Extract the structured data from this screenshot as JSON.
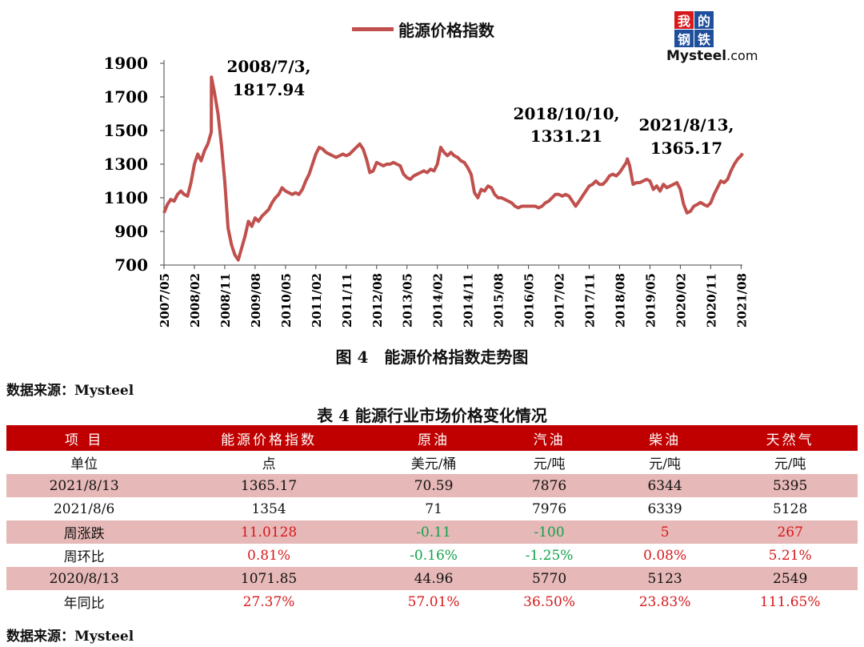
{
  "legend": {
    "label": "能源价格指数",
    "color": "#c0504d"
  },
  "logo": {
    "chars": [
      "我",
      "的",
      "钢",
      "铁"
    ],
    "word_main": "Mysteel",
    "word_suffix": ".com"
  },
  "chart_data": {
    "type": "line",
    "series_name": "能源价格指数",
    "ylim": [
      700,
      1900
    ],
    "yticks": [
      700,
      900,
      1100,
      1300,
      1500,
      1700,
      1900
    ],
    "xtick_labels": [
      "2007/05",
      "2008/02",
      "2008/11",
      "2009/08",
      "2010/05",
      "2011/02",
      "2011/11",
      "2012/08",
      "2013/05",
      "2014/02",
      "2014/11",
      "2015/08",
      "2016/05",
      "2017/02",
      "2017/11",
      "2018/08",
      "2019/05",
      "2020/02",
      "2020/11",
      "2021/08"
    ],
    "points": [
      [
        "2007/05",
        1010
      ],
      [
        "2007/06",
        1060
      ],
      [
        "2007/07",
        1090
      ],
      [
        "2007/08",
        1080
      ],
      [
        "2007/09",
        1120
      ],
      [
        "2007/10",
        1140
      ],
      [
        "2007/11",
        1120
      ],
      [
        "2007/12",
        1110
      ],
      [
        "2008/01",
        1190
      ],
      [
        "2008/02",
        1300
      ],
      [
        "2008/03",
        1360
      ],
      [
        "2008/04",
        1320
      ],
      [
        "2008/05",
        1380
      ],
      [
        "2008/06",
        1420
      ],
      [
        "2008/07",
        1490
      ],
      [
        "2008/07/03",
        1817.94
      ],
      [
        "2008/08",
        1720
      ],
      [
        "2008/09",
        1600
      ],
      [
        "2008/10",
        1420
      ],
      [
        "2008/11",
        1200
      ],
      [
        "2008/12",
        920
      ],
      [
        "2009/01",
        820
      ],
      [
        "2009/02",
        760
      ],
      [
        "2009/03",
        730
      ],
      [
        "2009/04",
        800
      ],
      [
        "2009/05",
        870
      ],
      [
        "2009/06",
        960
      ],
      [
        "2009/07",
        930
      ],
      [
        "2009/08",
        980
      ],
      [
        "2009/09",
        960
      ],
      [
        "2009/10",
        990
      ],
      [
        "2009/11",
        1010
      ],
      [
        "2009/12",
        1030
      ],
      [
        "2010/01",
        1070
      ],
      [
        "2010/02",
        1100
      ],
      [
        "2010/03",
        1120
      ],
      [
        "2010/04",
        1160
      ],
      [
        "2010/05",
        1140
      ],
      [
        "2010/06",
        1130
      ],
      [
        "2010/07",
        1120
      ],
      [
        "2010/08",
        1130
      ],
      [
        "2010/09",
        1120
      ],
      [
        "2010/10",
        1150
      ],
      [
        "2010/11",
        1200
      ],
      [
        "2010/12",
        1240
      ],
      [
        "2011/01",
        1300
      ],
      [
        "2011/02",
        1360
      ],
      [
        "2011/03",
        1400
      ],
      [
        "2011/04",
        1390
      ],
      [
        "2011/05",
        1370
      ],
      [
        "2011/06",
        1360
      ],
      [
        "2011/07",
        1350
      ],
      [
        "2011/08",
        1340
      ],
      [
        "2011/09",
        1350
      ],
      [
        "2011/10",
        1360
      ],
      [
        "2011/11",
        1350
      ],
      [
        "2011/12",
        1360
      ],
      [
        "2012/01",
        1380
      ],
      [
        "2012/02",
        1400
      ],
      [
        "2012/03",
        1420
      ],
      [
        "2012/04",
        1390
      ],
      [
        "2012/05",
        1330
      ],
      [
        "2012/06",
        1250
      ],
      [
        "2012/07",
        1260
      ],
      [
        "2012/08",
        1310
      ],
      [
        "2012/09",
        1300
      ],
      [
        "2012/10",
        1290
      ],
      [
        "2012/11",
        1300
      ],
      [
        "2012/12",
        1300
      ],
      [
        "2013/01",
        1310
      ],
      [
        "2013/02",
        1300
      ],
      [
        "2013/03",
        1290
      ],
      [
        "2013/04",
        1240
      ],
      [
        "2013/05",
        1220
      ],
      [
        "2013/06",
        1210
      ],
      [
        "2013/07",
        1230
      ],
      [
        "2013/08",
        1240
      ],
      [
        "2013/09",
        1250
      ],
      [
        "2013/10",
        1260
      ],
      [
        "2013/11",
        1250
      ],
      [
        "2013/12",
        1270
      ],
      [
        "2014/01",
        1260
      ],
      [
        "2014/02",
        1300
      ],
      [
        "2014/03",
        1400
      ],
      [
        "2014/04",
        1370
      ],
      [
        "2014/05",
        1350
      ],
      [
        "2014/06",
        1370
      ],
      [
        "2014/07",
        1350
      ],
      [
        "2014/08",
        1340
      ],
      [
        "2014/09",
        1320
      ],
      [
        "2014/10",
        1310
      ],
      [
        "2014/11",
        1280
      ],
      [
        "2014/12",
        1240
      ],
      [
        "2015/01",
        1130
      ],
      [
        "2015/02",
        1100
      ],
      [
        "2015/03",
        1150
      ],
      [
        "2015/04",
        1140
      ],
      [
        "2015/05",
        1170
      ],
      [
        "2015/06",
        1160
      ],
      [
        "2015/07",
        1120
      ],
      [
        "2015/08",
        1100
      ],
      [
        "2015/09",
        1100
      ],
      [
        "2015/10",
        1090
      ],
      [
        "2015/11",
        1080
      ],
      [
        "2015/12",
        1070
      ],
      [
        "2016/01",
        1050
      ],
      [
        "2016/02",
        1040
      ],
      [
        "2016/03",
        1050
      ],
      [
        "2016/04",
        1050
      ],
      [
        "2016/05",
        1050
      ],
      [
        "2016/06",
        1050
      ],
      [
        "2016/07",
        1050
      ],
      [
        "2016/08",
        1040
      ],
      [
        "2016/09",
        1050
      ],
      [
        "2016/10",
        1070
      ],
      [
        "2016/11",
        1080
      ],
      [
        "2016/12",
        1100
      ],
      [
        "2017/01",
        1120
      ],
      [
        "2017/02",
        1120
      ],
      [
        "2017/03",
        1110
      ],
      [
        "2017/04",
        1120
      ],
      [
        "2017/05",
        1110
      ],
      [
        "2017/06",
        1080
      ],
      [
        "2017/07",
        1050
      ],
      [
        "2017/08",
        1080
      ],
      [
        "2017/09",
        1110
      ],
      [
        "2017/10",
        1140
      ],
      [
        "2017/11",
        1170
      ],
      [
        "2017/12",
        1180
      ],
      [
        "2018/01",
        1200
      ],
      [
        "2018/02",
        1180
      ],
      [
        "2018/03",
        1180
      ],
      [
        "2018/04",
        1200
      ],
      [
        "2018/05",
        1230
      ],
      [
        "2018/06",
        1240
      ],
      [
        "2018/07",
        1230
      ],
      [
        "2018/08",
        1250
      ],
      [
        "2018/09",
        1280
      ],
      [
        "2018/10",
        1310
      ],
      [
        "2018/10/10",
        1331.21
      ],
      [
        "2018/11",
        1290
      ],
      [
        "2018/12",
        1180
      ],
      [
        "2019/01",
        1190
      ],
      [
        "2019/02",
        1190
      ],
      [
        "2019/03",
        1200
      ],
      [
        "2019/04",
        1210
      ],
      [
        "2019/05",
        1200
      ],
      [
        "2019/06",
        1150
      ],
      [
        "2019/07",
        1170
      ],
      [
        "2019/08",
        1140
      ],
      [
        "2019/09",
        1180
      ],
      [
        "2019/10",
        1160
      ],
      [
        "2019/11",
        1170
      ],
      [
        "2019/12",
        1180
      ],
      [
        "2020/01",
        1190
      ],
      [
        "2020/02",
        1150
      ],
      [
        "2020/03",
        1060
      ],
      [
        "2020/04",
        1010
      ],
      [
        "2020/05",
        1020
      ],
      [
        "2020/06",
        1050
      ],
      [
        "2020/07",
        1060
      ],
      [
        "2020/08",
        1071.85
      ],
      [
        "2020/09",
        1060
      ],
      [
        "2020/10",
        1050
      ],
      [
        "2020/11",
        1070
      ],
      [
        "2020/12",
        1120
      ],
      [
        "2021/01",
        1160
      ],
      [
        "2021/02",
        1200
      ],
      [
        "2021/03",
        1190
      ],
      [
        "2021/04",
        1210
      ],
      [
        "2021/05",
        1260
      ],
      [
        "2021/06",
        1300
      ],
      [
        "2021/07",
        1330
      ],
      [
        "2021/08/06",
        1354
      ],
      [
        "2021/08/13",
        1365.17
      ]
    ],
    "annotations": [
      {
        "date_line": "2008/7/3,",
        "value_line": "1817.94"
      },
      {
        "date_line": "2018/10/10,",
        "value_line": "1331.21"
      },
      {
        "date_line": "2021/8/13,",
        "value_line": "1365.17"
      }
    ]
  },
  "figure_caption": "图 4　能源价格指数走势图",
  "source_top": "数据来源：Mysteel",
  "table": {
    "title": "表 4 能源行业市场价格变化情况",
    "headers": [
      "项 目",
      "能源价格指数",
      "原油",
      "汽油",
      "柴油",
      "天然气"
    ],
    "rows": [
      {
        "shade": false,
        "cells": [
          "单位",
          "点",
          "美元/桶",
          "元/吨",
          "元/吨",
          "元/吨"
        ],
        "colors": [
          "",
          "",
          "",
          "",
          "",
          ""
        ]
      },
      {
        "shade": true,
        "cells": [
          "2021/8/13",
          "1365.17",
          "70.59",
          "7876",
          "6344",
          "5395"
        ],
        "colors": [
          "",
          "",
          "",
          "",
          "",
          ""
        ]
      },
      {
        "shade": false,
        "cells": [
          "2021/8/6",
          "1354",
          "71",
          "7976",
          "6339",
          "5128"
        ],
        "colors": [
          "",
          "",
          "",
          "",
          "",
          ""
        ]
      },
      {
        "shade": true,
        "cells": [
          "周涨跌",
          "11.0128",
          "-0.11",
          "-100",
          "5",
          "267"
        ],
        "colors": [
          "",
          "red",
          "green",
          "green",
          "red",
          "red"
        ]
      },
      {
        "shade": false,
        "cells": [
          "周环比",
          "0.81%",
          "-0.16%",
          "-1.25%",
          "0.08%",
          "5.21%"
        ],
        "colors": [
          "",
          "red",
          "green",
          "green",
          "red",
          "red"
        ]
      },
      {
        "shade": true,
        "cells": [
          "2020/8/13",
          "1071.85",
          "44.96",
          "5770",
          "5123",
          "2549"
        ],
        "colors": [
          "",
          "",
          "",
          "",
          "",
          ""
        ]
      },
      {
        "shade": false,
        "cells": [
          "年同比",
          "27.37%",
          "57.01%",
          "36.50%",
          "23.83%",
          "111.65%"
        ],
        "colors": [
          "",
          "red",
          "red",
          "red",
          "red",
          "red"
        ]
      }
    ]
  },
  "source_bottom": "数据来源：Mysteel"
}
